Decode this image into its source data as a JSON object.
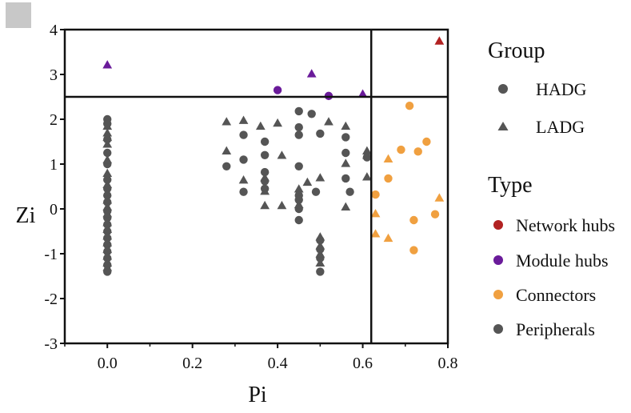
{
  "chart_data": {
    "type": "scatter",
    "xlabel": "Pi",
    "ylabel": "Zi",
    "xlim": [
      -0.1,
      0.8
    ],
    "ylim": [
      -3,
      4
    ],
    "xticks": [
      "0.0",
      "0.2",
      "0.4",
      "0.6",
      "0.8"
    ],
    "yticks": [
      "4",
      "3",
      "2",
      "1",
      "0",
      "-1",
      "-2",
      "-3"
    ],
    "thresholds": {
      "pi": 0.62,
      "zi": 2.5
    },
    "legend": {
      "group_title": "Group",
      "group_items": [
        {
          "label": "HADG",
          "shape": "circle"
        },
        {
          "label": "LADG",
          "shape": "triangle"
        }
      ],
      "type_title": "Type",
      "type_items": [
        {
          "label": "Network hubs",
          "color": "#b22222"
        },
        {
          "label": "Module hubs",
          "color": "#6a1b9a"
        },
        {
          "label": "Connectors",
          "color": "#f0a040"
        },
        {
          "label": "Peripherals",
          "color": "#555555"
        }
      ]
    },
    "series": [
      {
        "group": "HADG",
        "type": "Peripherals",
        "color": "#555555",
        "shape": "circle",
        "points": [
          [
            0,
            2.0
          ],
          [
            0,
            1.9
          ],
          [
            0,
            1.55
          ],
          [
            0,
            1.25
          ],
          [
            0,
            1.0
          ],
          [
            0,
            0.65
          ],
          [
            0,
            0.45
          ],
          [
            0,
            0.3
          ],
          [
            0,
            0.15
          ],
          [
            0,
            -0.05
          ],
          [
            0,
            -0.2
          ],
          [
            0,
            -0.35
          ],
          [
            0,
            -0.5
          ],
          [
            0,
            -0.65
          ],
          [
            0,
            -0.8
          ],
          [
            0,
            -0.95
          ],
          [
            0,
            -1.1
          ],
          [
            0,
            -1.25
          ],
          [
            0,
            -1.4
          ],
          [
            0.28,
            0.95
          ],
          [
            0.32,
            1.65
          ],
          [
            0.32,
            1.1
          ],
          [
            0.32,
            0.38
          ],
          [
            0.37,
            1.5
          ],
          [
            0.37,
            1.2
          ],
          [
            0.37,
            0.82
          ],
          [
            0.37,
            0.62
          ],
          [
            0.37,
            0.45
          ],
          [
            0.45,
            2.18
          ],
          [
            0.45,
            1.82
          ],
          [
            0.45,
            1.65
          ],
          [
            0.45,
            0.95
          ],
          [
            0.45,
            0.3
          ],
          [
            0.45,
            0.2
          ],
          [
            0.45,
            0.0
          ],
          [
            0.45,
            -0.25
          ],
          [
            0.48,
            2.12
          ],
          [
            0.49,
            0.38
          ],
          [
            0.5,
            1.68
          ],
          [
            0.5,
            -0.7
          ],
          [
            0.5,
            -0.9
          ],
          [
            0.5,
            -1.1
          ],
          [
            0.5,
            -1.4
          ],
          [
            0.56,
            1.6
          ],
          [
            0.56,
            1.25
          ],
          [
            0.56,
            0.68
          ],
          [
            0.57,
            0.38
          ],
          [
            0.61,
            1.15
          ]
        ]
      },
      {
        "group": "LADG",
        "type": "Peripherals",
        "color": "#555555",
        "shape": "triangle",
        "points": [
          [
            0,
            1.85
          ],
          [
            0,
            1.7
          ],
          [
            0,
            1.6
          ],
          [
            0,
            1.45
          ],
          [
            0,
            1.1
          ],
          [
            0,
            0.8
          ],
          [
            0,
            0.55
          ],
          [
            0,
            0.2
          ],
          [
            0,
            0.05
          ],
          [
            0,
            -0.1
          ],
          [
            0,
            -0.3
          ],
          [
            0,
            -0.45
          ],
          [
            0,
            -0.6
          ],
          [
            0,
            -0.75
          ],
          [
            0,
            -0.9
          ],
          [
            0,
            -1.05
          ],
          [
            0,
            -1.2
          ],
          [
            0,
            -1.3
          ],
          [
            0.28,
            1.95
          ],
          [
            0.28,
            1.3
          ],
          [
            0.32,
            1.98
          ],
          [
            0.32,
            0.65
          ],
          [
            0.36,
            1.85
          ],
          [
            0.37,
            0.7
          ],
          [
            0.37,
            0.4
          ],
          [
            0.37,
            0.08
          ],
          [
            0.4,
            1.92
          ],
          [
            0.41,
            1.2
          ],
          [
            0.41,
            0.08
          ],
          [
            0.45,
            0.45
          ],
          [
            0.45,
            0.1
          ],
          [
            0.47,
            0.6
          ],
          [
            0.5,
            0.7
          ],
          [
            0.5,
            -0.62
          ],
          [
            0.5,
            -0.82
          ],
          [
            0.5,
            -1.0
          ],
          [
            0.5,
            -1.2
          ],
          [
            0.52,
            1.95
          ],
          [
            0.56,
            1.85
          ],
          [
            0.56,
            1.02
          ],
          [
            0.56,
            0.05
          ],
          [
            0.61,
            0.72
          ],
          [
            0.61,
            1.3
          ],
          [
            0.61,
            1.2
          ]
        ]
      },
      {
        "group": "HADG",
        "type": "Module hubs",
        "color": "#6a1b9a",
        "shape": "circle",
        "points": [
          [
            0.4,
            2.65
          ],
          [
            0.52,
            2.52
          ]
        ]
      },
      {
        "group": "LADG",
        "type": "Module hubs",
        "color": "#6a1b9a",
        "shape": "triangle",
        "points": [
          [
            0,
            3.22
          ],
          [
            0.48,
            3.02
          ],
          [
            0.6,
            2.57
          ]
        ]
      },
      {
        "group": "LADG",
        "type": "Network hubs",
        "color": "#b22222",
        "shape": "triangle",
        "points": [
          [
            0.78,
            3.75
          ]
        ]
      },
      {
        "group": "HADG",
        "type": "Connectors",
        "color": "#f0a040",
        "shape": "circle",
        "points": [
          [
            0.71,
            2.3
          ],
          [
            0.63,
            0.32
          ],
          [
            0.66,
            0.68
          ],
          [
            0.69,
            1.32
          ],
          [
            0.73,
            1.28
          ],
          [
            0.75,
            1.5
          ],
          [
            0.72,
            -0.25
          ],
          [
            0.72,
            -0.92
          ],
          [
            0.77,
            -0.12
          ]
        ]
      },
      {
        "group": "LADG",
        "type": "Connectors",
        "color": "#f0a040",
        "shape": "triangle",
        "points": [
          [
            0.63,
            -0.1
          ],
          [
            0.63,
            -0.55
          ],
          [
            0.66,
            1.12
          ],
          [
            0.66,
            -0.65
          ],
          [
            0.78,
            0.25
          ]
        ]
      }
    ]
  }
}
